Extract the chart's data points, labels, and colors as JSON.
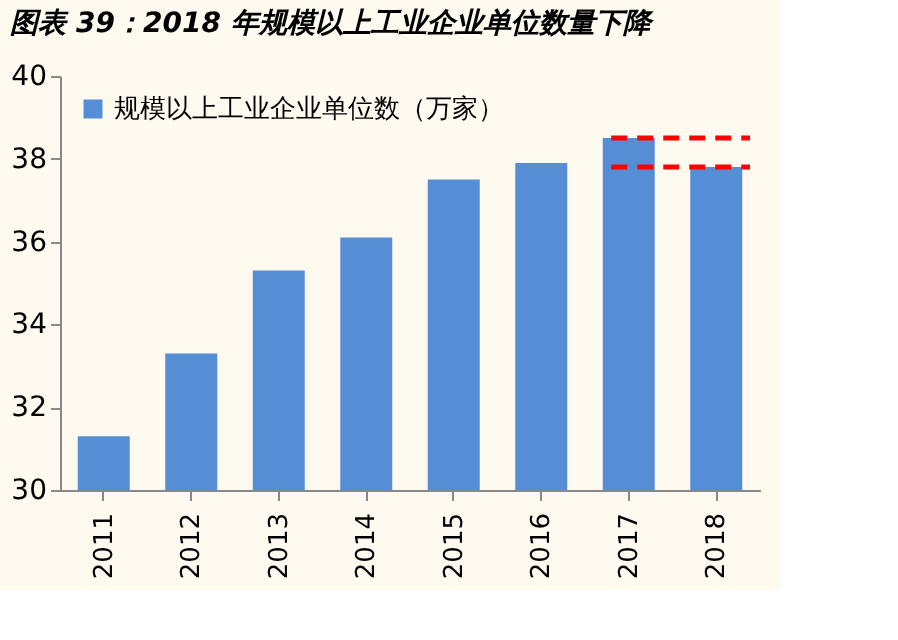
{
  "chart_data": {
    "type": "bar",
    "title": "图表 39：2018 年规模以上工业企业单位数量下降",
    "categories": [
      "2011",
      "2012",
      "2013",
      "2014",
      "2015",
      "2016",
      "2017",
      "2018"
    ],
    "series": [
      {
        "name": "规模以上工业企业单位数（万家）",
        "color": "#558ed5",
        "values": [
          31.3,
          33.3,
          35.3,
          36.1,
          37.5,
          37.9,
          38.5,
          37.8
        ]
      }
    ],
    "ylim": [
      30,
      40
    ],
    "yticks": [
      30,
      32,
      34,
      36,
      38,
      40
    ],
    "grid": false,
    "legend": "top left",
    "ref_lines": [
      {
        "axis": "y",
        "value": 38.5,
        "color": "#ff0000",
        "line_style": "dashed"
      },
      {
        "axis": "y",
        "value": 37.8,
        "color": "#ff0000",
        "line_style": "dashed"
      }
    ]
  }
}
